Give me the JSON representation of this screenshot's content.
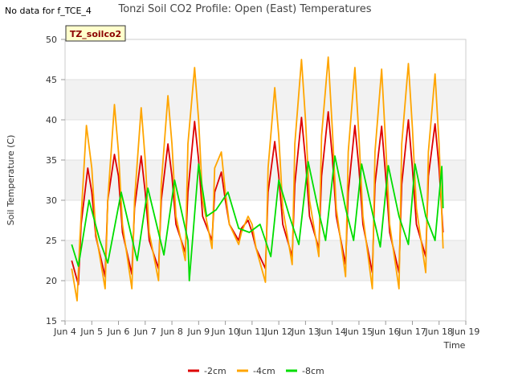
{
  "note": "No data for f_TCE_4",
  "chart_data": {
    "type": "line",
    "title": "Tonzi Soil CO2 Profile: Open (East) Temperatures",
    "xlabel": "Time",
    "ylabel": "Soil Temperature (C)",
    "badge": "TZ_soilco2",
    "ylim": [
      15,
      50
    ],
    "yticks": [
      15,
      20,
      25,
      30,
      35,
      40,
      45,
      50
    ],
    "xlim": [
      4,
      19
    ],
    "xticks": [
      4,
      5,
      6,
      7,
      8,
      9,
      10,
      11,
      12,
      13,
      14,
      15,
      16,
      17,
      18,
      19
    ],
    "xtick_labels": [
      "Jun 4",
      "Jun 5",
      "Jun 6",
      "Jun 7",
      "Jun 8",
      "Jun 9",
      "Jun 10",
      "Jun 11",
      "Jun 12",
      "Jun 13",
      "Jun 14",
      "Jun 15",
      "Jun 16",
      "Jun 17",
      "Jun 18",
      "Jun 19"
    ],
    "grid": "horizontal alternating bands",
    "legend_position": "bottom-center",
    "series": [
      {
        "name": "-2cm",
        "color": "#dd0000",
        "x": [
          4.25,
          4.5,
          4.6,
          4.85,
          5.0,
          5.15,
          5.5,
          5.6,
          5.85,
          6.0,
          6.15,
          6.5,
          6.6,
          6.85,
          7.0,
          7.15,
          7.5,
          7.6,
          7.85,
          8.0,
          8.15,
          8.5,
          8.6,
          8.85,
          9.0,
          9.15,
          9.5,
          9.6,
          9.85,
          10.0,
          10.15,
          10.5,
          10.6,
          10.85,
          11.0,
          11.15,
          11.5,
          11.6,
          11.85,
          12.0,
          12.15,
          12.5,
          12.6,
          12.85,
          13.0,
          13.15,
          13.5,
          13.6,
          13.85,
          14.0,
          14.15,
          14.5,
          14.6,
          14.85,
          15.0,
          15.15,
          15.5,
          15.6,
          15.85,
          16.0,
          16.15,
          16.5,
          16.6,
          16.85,
          17.0,
          17.15,
          17.5,
          17.6,
          17.85,
          18.0,
          18.15
        ],
        "y": [
          22.5,
          19.5,
          27,
          34,
          31,
          25.5,
          20.5,
          30,
          35.7,
          33,
          26,
          20.8,
          29,
          35.5,
          31,
          25,
          21.5,
          30,
          37,
          33,
          27,
          23.5,
          31,
          39.8,
          35,
          28,
          25,
          31,
          33.5,
          30,
          27,
          25,
          26.5,
          27.5,
          26,
          24,
          21.5,
          31,
          37.3,
          33,
          27,
          23,
          32,
          40.3,
          35,
          28,
          24,
          33,
          41,
          35.5,
          28,
          22,
          31,
          39.3,
          34,
          27,
          21,
          32,
          39.2,
          33,
          26,
          21,
          32,
          40,
          34,
          27,
          23,
          33,
          39.5,
          34,
          26
        ]
      },
      {
        "name": "-4cm",
        "color": "#ffa500",
        "x": [
          4.25,
          4.45,
          4.55,
          4.8,
          5.0,
          5.15,
          5.5,
          5.6,
          5.85,
          6.0,
          6.15,
          6.5,
          6.6,
          6.85,
          7.0,
          7.15,
          7.5,
          7.6,
          7.85,
          8.0,
          8.15,
          8.5,
          8.6,
          8.85,
          9.0,
          9.15,
          9.5,
          9.6,
          9.85,
          10.0,
          10.15,
          10.5,
          10.6,
          10.85,
          11.0,
          11.15,
          11.5,
          11.6,
          11.85,
          12.0,
          12.15,
          12.5,
          12.6,
          12.85,
          13.0,
          13.15,
          13.5,
          13.6,
          13.85,
          14.0,
          14.15,
          14.5,
          14.6,
          14.85,
          15.0,
          15.15,
          15.5,
          15.6,
          15.85,
          16.0,
          16.15,
          16.5,
          16.6,
          16.85,
          17.0,
          17.15,
          17.5,
          17.6,
          17.85,
          18.0,
          18.15
        ],
        "y": [
          21.5,
          17.5,
          25,
          39.3,
          34,
          26,
          19,
          30,
          41.9,
          36,
          27,
          19,
          30,
          41.5,
          35,
          26,
          20,
          32,
          43,
          37,
          28,
          22.5,
          37,
          46.5,
          40,
          30,
          24,
          34,
          36,
          31,
          27,
          24.5,
          26,
          28,
          27,
          24,
          19.8,
          34,
          44,
          38,
          29,
          22,
          37,
          47.5,
          40,
          30,
          23,
          38,
          47.8,
          39,
          29,
          20.5,
          36,
          46.5,
          38,
          28,
          19,
          36,
          46.3,
          37,
          27,
          19,
          37,
          47,
          39,
          29,
          21,
          36,
          45.7,
          37,
          24
        ]
      },
      {
        "name": "-8cm",
        "color": "#00dd00",
        "x": [
          4.25,
          4.5,
          4.9,
          5.3,
          5.6,
          6.1,
          6.7,
          7.1,
          7.7,
          8.1,
          8.6,
          8.65,
          9.0,
          9.3,
          9.65,
          10.1,
          10.5,
          10.9,
          11.3,
          11.7,
          12.0,
          12.4,
          12.75,
          13.1,
          13.5,
          13.75,
          14.1,
          14.5,
          14.8,
          15.1,
          15.5,
          15.8,
          16.1,
          16.5,
          16.85,
          17.1,
          17.5,
          17.85,
          18.1,
          18.15
        ],
        "y": [
          24.5,
          21.8,
          30,
          25,
          22.2,
          31,
          22.5,
          31.5,
          23.2,
          32.5,
          25,
          20,
          34.5,
          28,
          28.8,
          31,
          26.5,
          26,
          27,
          23,
          32.5,
          28,
          24.5,
          34.8,
          28.5,
          25,
          35.5,
          29,
          25,
          34.5,
          28.5,
          24.2,
          34.3,
          28,
          24.5,
          34.5,
          28,
          25,
          34.2,
          29
        ]
      }
    ]
  }
}
